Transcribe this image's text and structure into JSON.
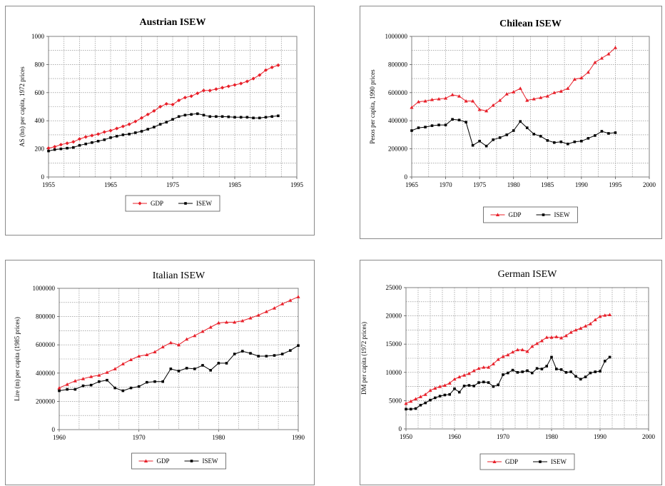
{
  "colors": {
    "gdp": "#e8202a",
    "isew": "#000000"
  },
  "chart_data": [
    {
      "type": "line",
      "title": "Austrian ISEW",
      "title_bold": true,
      "ylabel": "AS (bn) per capita, 1972 prices",
      "xlabel": "",
      "xlim": [
        1955,
        1995
      ],
      "ylim": [
        0,
        1000
      ],
      "xticks": [
        1955,
        1965,
        1975,
        1985,
        1995
      ],
      "yticks": [
        0,
        200,
        400,
        600,
        800,
        1000
      ],
      "xgrid_step": 2.5,
      "ygrid_step": 100,
      "legend": [
        "GDP",
        "ISEW"
      ],
      "series": [
        {
          "name": "GDP",
          "marker": "diamond",
          "x": [
            1955,
            1956,
            1957,
            1958,
            1959,
            1960,
            1961,
            1962,
            1963,
            1964,
            1965,
            1966,
            1967,
            1968,
            1969,
            1970,
            1971,
            1972,
            1973,
            1974,
            1975,
            1976,
            1977,
            1978,
            1979,
            1980,
            1981,
            1982,
            1983,
            1984,
            1985,
            1986,
            1987,
            1988,
            1989,
            1990,
            1991,
            1992
          ],
          "y": [
            205,
            215,
            230,
            240,
            250,
            270,
            285,
            295,
            305,
            320,
            330,
            345,
            360,
            375,
            395,
            420,
            445,
            470,
            500,
            520,
            515,
            545,
            565,
            575,
            595,
            615,
            615,
            625,
            635,
            645,
            655,
            665,
            680,
            700,
            725,
            760,
            780,
            795
          ]
        },
        {
          "name": "ISEW",
          "marker": "square",
          "x": [
            1955,
            1956,
            1957,
            1958,
            1959,
            1960,
            1961,
            1962,
            1963,
            1964,
            1965,
            1966,
            1967,
            1968,
            1969,
            1970,
            1971,
            1972,
            1973,
            1974,
            1975,
            1976,
            1977,
            1978,
            1979,
            1980,
            1981,
            1982,
            1983,
            1984,
            1985,
            1986,
            1987,
            1988,
            1989,
            1990,
            1991,
            1992
          ],
          "y": [
            185,
            195,
            200,
            205,
            210,
            225,
            235,
            245,
            255,
            265,
            280,
            290,
            300,
            305,
            315,
            325,
            340,
            355,
            375,
            390,
            410,
            430,
            440,
            445,
            450,
            440,
            430,
            430,
            430,
            428,
            425,
            425,
            425,
            420,
            420,
            425,
            430,
            435
          ]
        }
      ]
    },
    {
      "type": "line",
      "title": "Chilean ISEW",
      "title_bold": true,
      "ylabel": "Pesos per capita, 1990 prices",
      "xlabel": "",
      "xlim": [
        1965,
        2000
      ],
      "ylim": [
        0,
        1000000
      ],
      "xticks": [
        1965,
        1970,
        1975,
        1980,
        1985,
        1990,
        1995,
        2000
      ],
      "yticks": [
        0,
        200000,
        400000,
        600000,
        800000,
        1000000
      ],
      "xgrid_step": 2.5,
      "ygrid_step": 100000,
      "legend": [
        "GDP",
        "ISEW"
      ],
      "series": [
        {
          "name": "GDP",
          "marker": "triangle",
          "x": [
            1965,
            1966,
            1967,
            1968,
            1969,
            1970,
            1971,
            1972,
            1973,
            1974,
            1975,
            1976,
            1977,
            1978,
            1979,
            1980,
            1981,
            1982,
            1983,
            1984,
            1985,
            1986,
            1987,
            1988,
            1989,
            1990,
            1991,
            1992,
            1993,
            1994,
            1995
          ],
          "y": [
            495000,
            535000,
            540000,
            550000,
            555000,
            560000,
            585000,
            575000,
            540000,
            540000,
            480000,
            470000,
            510000,
            545000,
            590000,
            605000,
            630000,
            545000,
            555000,
            565000,
            575000,
            600000,
            610000,
            630000,
            695000,
            705000,
            745000,
            815000,
            845000,
            875000,
            920000
          ]
        },
        {
          "name": "ISEW",
          "marker": "square",
          "x": [
            1965,
            1966,
            1967,
            1968,
            1969,
            1970,
            1971,
            1972,
            1973,
            1974,
            1975,
            1976,
            1977,
            1978,
            1979,
            1980,
            1981,
            1982,
            1983,
            1984,
            1985,
            1986,
            1987,
            1988,
            1989,
            1990,
            1991,
            1992,
            1993,
            1994,
            1995
          ],
          "y": [
            330000,
            350000,
            355000,
            365000,
            370000,
            370000,
            410000,
            405000,
            390000,
            225000,
            255000,
            220000,
            265000,
            280000,
            300000,
            330000,
            395000,
            350000,
            305000,
            290000,
            260000,
            245000,
            250000,
            235000,
            250000,
            255000,
            275000,
            295000,
            325000,
            310000,
            315000
          ]
        }
      ]
    },
    {
      "type": "line",
      "title": "Italian ISEW",
      "title_bold": false,
      "ylabel": "Lire (m) per capita (1985 prices)",
      "xlabel": "",
      "xlim": [
        1960,
        1990
      ],
      "ylim": [
        0,
        1000000
      ],
      "xticks": [
        1960,
        1970,
        1980,
        1990
      ],
      "yticks": [
        0,
        200000,
        400000,
        600000,
        800000,
        1000000
      ],
      "xgrid_step": 2.5,
      "ygrid_step": 100000,
      "legend": [
        "GDP",
        "ISEW"
      ],
      "series": [
        {
          "name": "GDP",
          "marker": "triangle",
          "x": [
            1960,
            1961,
            1962,
            1963,
            1964,
            1965,
            1966,
            1967,
            1968,
            1969,
            1970,
            1971,
            1972,
            1973,
            1974,
            1975,
            1976,
            1977,
            1978,
            1979,
            1980,
            1981,
            1982,
            1983,
            1984,
            1985,
            1986,
            1987,
            1988,
            1989,
            1990
          ],
          "y": [
            295000,
            320000,
            345000,
            360000,
            375000,
            385000,
            405000,
            430000,
            465000,
            495000,
            520000,
            530000,
            550000,
            585000,
            615000,
            600000,
            640000,
            665000,
            695000,
            725000,
            755000,
            760000,
            760000,
            770000,
            790000,
            810000,
            835000,
            860000,
            890000,
            915000,
            940000
          ]
        },
        {
          "name": "ISEW",
          "marker": "square",
          "x": [
            1960,
            1961,
            1962,
            1963,
            1964,
            1965,
            1966,
            1967,
            1968,
            1969,
            1970,
            1971,
            1972,
            1973,
            1974,
            1975,
            1976,
            1977,
            1978,
            1979,
            1980,
            1981,
            1982,
            1983,
            1984,
            1985,
            1986,
            1987,
            1988,
            1989,
            1990
          ],
          "y": [
            275000,
            285000,
            285000,
            310000,
            315000,
            340000,
            350000,
            295000,
            275000,
            295000,
            305000,
            335000,
            340000,
            340000,
            430000,
            415000,
            435000,
            430000,
            455000,
            420000,
            470000,
            470000,
            535000,
            555000,
            540000,
            520000,
            520000,
            525000,
            535000,
            560000,
            595000
          ]
        }
      ]
    },
    {
      "type": "line",
      "title": "German ISEW",
      "title_bold": false,
      "ylabel": "DM per capita (1972 prices)",
      "xlabel": "",
      "xlim": [
        1950,
        2000
      ],
      "ylim": [
        0,
        25000
      ],
      "xticks": [
        1950,
        1960,
        1970,
        1980,
        1990,
        2000
      ],
      "yticks": [
        0,
        5000,
        10000,
        15000,
        20000,
        25000
      ],
      "xgrid_step": 2.5,
      "ygrid_step": 2500,
      "legend": [
        "GDP",
        "ISEW"
      ],
      "series": [
        {
          "name": "GDP",
          "marker": "triangle",
          "x": [
            1950,
            1951,
            1952,
            1953,
            1954,
            1955,
            1956,
            1957,
            1958,
            1959,
            1960,
            1961,
            1962,
            1963,
            1964,
            1965,
            1966,
            1967,
            1968,
            1969,
            1970,
            1971,
            1972,
            1973,
            1974,
            1975,
            1976,
            1977,
            1978,
            1979,
            1980,
            1981,
            1982,
            1983,
            1984,
            1985,
            1986,
            1987,
            1988,
            1989,
            1990,
            1991,
            1992
          ],
          "y": [
            4500,
            4900,
            5300,
            5700,
            6100,
            6800,
            7200,
            7500,
            7700,
            8100,
            8800,
            9200,
            9500,
            9800,
            10300,
            10700,
            10900,
            10900,
            11500,
            12300,
            12800,
            13100,
            13600,
            14000,
            14000,
            13700,
            14600,
            15100,
            15600,
            16200,
            16200,
            16300,
            16100,
            16500,
            17100,
            17500,
            17800,
            18200,
            18600,
            19300,
            19900,
            20100,
            20200
          ]
        },
        {
          "name": "ISEW",
          "marker": "square",
          "x": [
            1950,
            1951,
            1952,
            1953,
            1954,
            1955,
            1956,
            1957,
            1958,
            1959,
            1960,
            1961,
            1962,
            1963,
            1964,
            1965,
            1966,
            1967,
            1968,
            1969,
            1970,
            1971,
            1972,
            1973,
            1974,
            1975,
            1976,
            1977,
            1978,
            1979,
            1980,
            1981,
            1982,
            1983,
            1984,
            1985,
            1986,
            1987,
            1988,
            1989,
            1990,
            1991,
            1992
          ],
          "y": [
            3500,
            3500,
            3600,
            4200,
            4600,
            5100,
            5500,
            5800,
            6000,
            6100,
            7100,
            6500,
            7600,
            7700,
            7600,
            8200,
            8300,
            8200,
            7500,
            7800,
            9600,
            9900,
            10400,
            10000,
            10100,
            10300,
            9900,
            10700,
            10600,
            11100,
            12700,
            10600,
            10500,
            10000,
            10100,
            9300,
            8800,
            9200,
            9900,
            10100,
            10200,
            12000,
            12700
          ]
        }
      ]
    }
  ]
}
